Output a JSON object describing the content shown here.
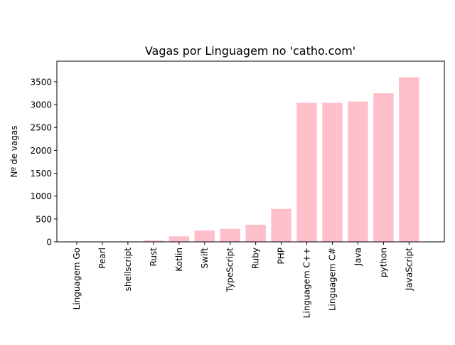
{
  "chart_data": {
    "type": "bar",
    "title": "Vagas por Linguagem no 'catho.com'",
    "xlabel": "",
    "ylabel": "Nº de vagas",
    "categories": [
      "Linguagem Go",
      "Pearl",
      "shellscript",
      "Rust",
      "Kotlin",
      "Swift",
      "TypeScript",
      "Ruby",
      "PHP",
      "Linguagem C++",
      "Linguagem C#",
      "Java",
      "python",
      "JavaScript"
    ],
    "values": [
      2,
      3,
      10,
      30,
      120,
      250,
      285,
      375,
      720,
      3040,
      3040,
      3070,
      3250,
      3600
    ],
    "ylim": [
      0,
      3950
    ],
    "yticks": [
      0,
      500,
      1000,
      1500,
      2000,
      2500,
      3000,
      3500
    ],
    "bar_color": "#ffc0cb",
    "grid": false,
    "legend": "none"
  }
}
